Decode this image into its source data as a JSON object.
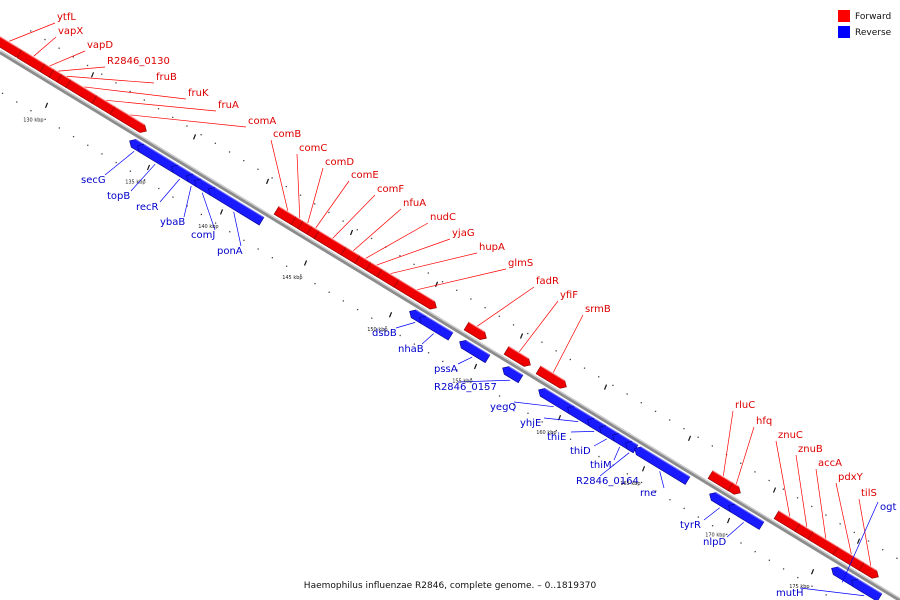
{
  "colors": {
    "forward": "#ff0000",
    "reverse": "#0000ff",
    "backbone": "#808080"
  },
  "legend": [
    {
      "label": "Forward",
      "color": "#ff0000"
    },
    {
      "label": "Reverse",
      "color": "#0000ff"
    }
  ],
  "caption": "Haemophilus influenzae R2846, complete genome. – 0..1819370",
  "scale_labels": [
    "130 kbp",
    "135 kbp",
    "140 kbp",
    "145 kbp",
    "150 kbp",
    "155 kbp",
    "160 kbp",
    "165 kbp",
    "170 kbp",
    "175 kbp"
  ],
  "forward_genes": [
    "ytfL",
    "vapX",
    "vapD",
    "R2846_0130",
    "fruB",
    "fruK",
    "fruA",
    "comA",
    "comB",
    "comC",
    "comD",
    "comE",
    "comF",
    "nfuA",
    "nudC",
    "yjaG",
    "hupA",
    "glmS",
    "fadR",
    "yfiF",
    "srmB",
    "rluC",
    "hfq",
    "znuC",
    "znuB",
    "accA",
    "pdxY",
    "tilS"
  ],
  "reverse_genes": [
    "secG",
    "topB",
    "recR",
    "ybaB",
    "comJ",
    "ponA",
    "dsbB",
    "nhaB",
    "pssA",
    "R2846_0157",
    "yegQ",
    "yhjE",
    "thiE",
    "thiD",
    "thiM",
    "R2846_0164",
    "rne",
    "tyrR",
    "nlpD",
    "ogt",
    "mutH"
  ]
}
